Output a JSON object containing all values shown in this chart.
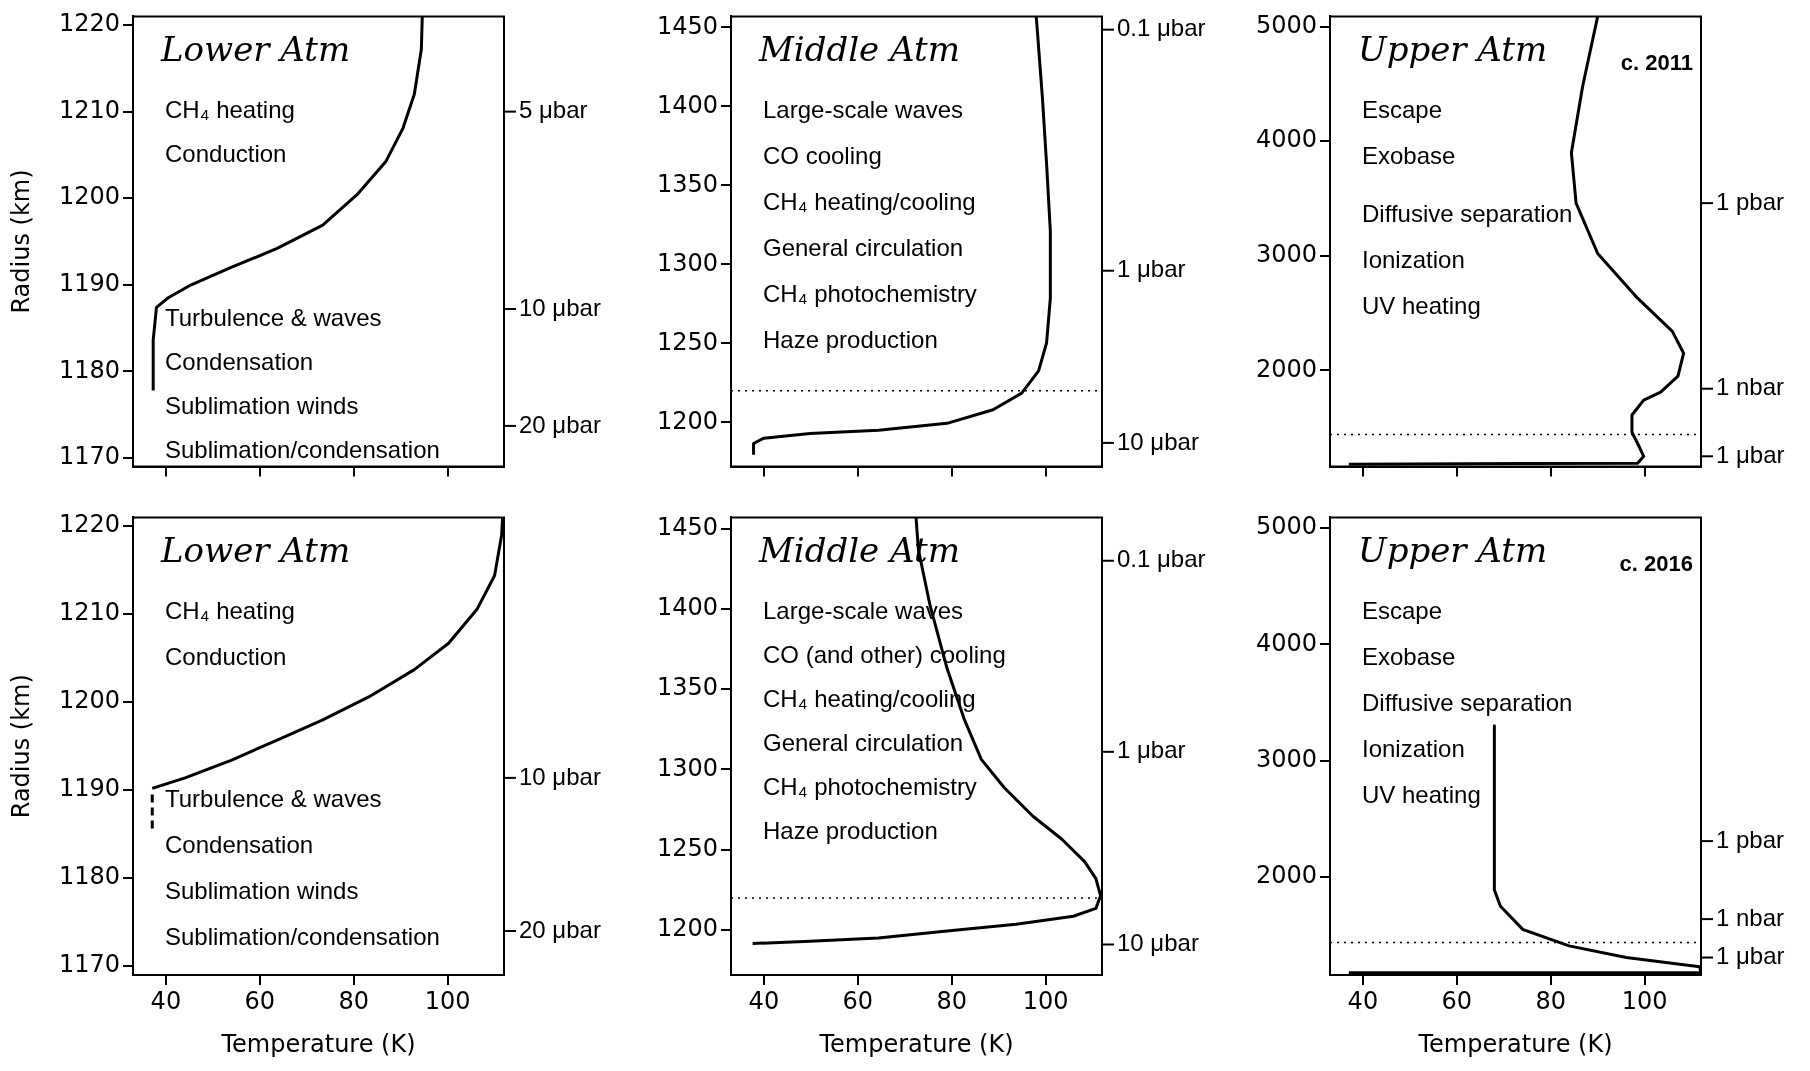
{
  "chart_data": [
    {
      "type": "line",
      "title": "Lower Atm",
      "ylabel": "Radius (km)",
      "tick_labels": "y",
      "xlim": [
        33,
        112
      ],
      "xticks": [
        40,
        60,
        80,
        100
      ],
      "ylim": [
        1169,
        1221
      ],
      "yticks": [
        1170,
        1180,
        1190,
        1200,
        1210,
        1220
      ],
      "series": [
        {
          "color": "#000000",
          "x": [
            37.3,
            37.3,
            38,
            40.5,
            45.4,
            53.9,
            63.7,
            73.4,
            80.7,
            86.8,
            90.5,
            92.9,
            94.4,
            94.6
          ],
          "values": [
            1177.8,
            1183.6,
            1187.4,
            1188.5,
            1190,
            1192,
            1194.2,
            1196.9,
            1200.4,
            1204.2,
            1208.1,
            1212,
            1217.2,
            1221
          ]
        }
      ],
      "ref_lines": [
        {
          "axis": "y",
          "value": 1210,
          "label": "5 μbar"
        },
        {
          "axis": "y",
          "value": 1187.2,
          "label": "10 μbar"
        },
        {
          "axis": "y",
          "value": 1173.7,
          "label": "20 μbar"
        }
      ],
      "annotations": [
        "CH₄ heating",
        "Conduction",
        "Turbulence & waves",
        "Condensation",
        "Sublimation winds",
        "Sublimation/condensation"
      ]
    },
    {
      "type": "line",
      "title": "Middle Atm",
      "tick_labels": "y",
      "xlim": [
        33,
        112
      ],
      "xticks": [
        40,
        60,
        80,
        100
      ],
      "ylim": [
        1172,
        1457
      ],
      "yticks": [
        1200,
        1250,
        1300,
        1350,
        1400,
        1450
      ],
      "series": [
        {
          "color": "#000000",
          "x": [
            37.8,
            37.8,
            40,
            49.8,
            64.4,
            79,
            88.8,
            94.9,
            98.5,
            100.2,
            101,
            101,
            100.2,
            99.3,
            98
          ],
          "values": [
            1179.5,
            1186.6,
            1190,
            1193,
            1195,
            1199.4,
            1208,
            1218.5,
            1232.6,
            1250.3,
            1278.7,
            1321,
            1363.6,
            1406,
            1457
          ]
        }
      ],
      "ref_lines": [
        {
          "axis": "y",
          "value": 1220,
          "line_style": "dotted"
        },
        {
          "axis": "y",
          "value": 1448.6,
          "label": "0.1 μbar"
        },
        {
          "axis": "y",
          "value": 1296,
          "label": "1 μbar"
        },
        {
          "axis": "y",
          "value": 1187,
          "label": "10 μbar"
        }
      ],
      "annotations": [
        "Large-scale waves",
        "CO cooling",
        "CH₄ heating/cooling",
        "General circulation",
        "CH₄ photochemistry",
        "Haze production"
      ]
    },
    {
      "type": "line",
      "title": "Upper Atm",
      "subtitle": "c. 2011",
      "tick_labels": "y",
      "xlim": [
        33,
        112
      ],
      "xticks": [
        40,
        60,
        80,
        100
      ],
      "ylim": [
        1160,
        5090
      ],
      "yticks": [
        2000,
        3000,
        4000,
        5000
      ],
      "series": [
        {
          "color": "#000000",
          "x": [
            90,
            86.8,
            84.4,
            85.4,
            90,
            98.5,
            105.9,
            108.3,
            107.1,
            103.4,
            99.8,
            97.3,
            97.3,
            99,
            99.8,
            98.5,
            37
          ],
          "values": [
            5090,
            4480,
            3900,
            3460,
            3020,
            2630,
            2340,
            2150,
            1950,
            1810,
            1740,
            1610,
            1460,
            1320,
            1250,
            1190,
            1180
          ]
        }
      ],
      "ref_lines": [
        {
          "axis": "y",
          "value": 1440,
          "line_style": "dotted"
        },
        {
          "axis": "y",
          "value": 3460,
          "label": "1 pbar"
        },
        {
          "axis": "y",
          "value": 1840,
          "label": "1 nbar"
        },
        {
          "axis": "y",
          "value": 1250,
          "label": "1 μbar"
        }
      ],
      "annotations": [
        "Escape",
        "Exobase",
        "Diffusive separation",
        "Ionization",
        "UV heating"
      ]
    },
    {
      "type": "line",
      "title": "Lower Atm",
      "xlabel": "Temperature (K)",
      "ylabel": "Radius (km)",
      "xlim": [
        33,
        112
      ],
      "xticks": [
        40,
        60,
        80,
        100
      ],
      "ylim": [
        1169,
        1221
      ],
      "yticks": [
        1170,
        1180,
        1190,
        1200,
        1210,
        1220
      ],
      "series": [
        {
          "color": "#000000",
          "x": [
            37.1,
            44.1,
            53.9,
            63.7,
            73.4,
            83.2,
            92.9,
            100.2,
            106.3,
            110,
            111.5,
            111.7
          ],
          "values": [
            1190.2,
            1191.4,
            1193.4,
            1195.7,
            1198,
            1200.6,
            1203.7,
            1206.7,
            1210.6,
            1214.4,
            1219,
            1221
          ]
        },
        {
          "color": "#000000",
          "line_style": "dashed",
          "x": [
            37.1,
            37.1
          ],
          "values": [
            1189.5,
            1185.6
          ]
        }
      ],
      "ref_lines": [
        {
          "axis": "y",
          "value": 1191.4,
          "label": "10 μbar"
        },
        {
          "axis": "y",
          "value": 1174,
          "label": "20 μbar"
        }
      ],
      "annotations": [
        "CH₄ heating",
        "Conduction",
        "Turbulence & waves",
        "Condensation",
        "Sublimation winds",
        "Sublimation/condensation"
      ]
    },
    {
      "type": "line",
      "title": "Middle Atm",
      "xlabel": "Temperature (K)",
      "xlim": [
        33,
        112
      ],
      "xticks": [
        40,
        60,
        80,
        100
      ],
      "ylim": [
        1172,
        1457
      ],
      "yticks": [
        1200,
        1250,
        1300,
        1350,
        1400,
        1450
      ],
      "series": [
        {
          "color": "#000000",
          "x": [
            37.6,
            49.8,
            64.4,
            79,
            93.7,
            105.9,
            110.7,
            111.7,
            110.7,
            108.3,
            103.4,
            97.3,
            91.2,
            86.3,
            82.7,
            79,
            75.4,
            72.9,
            72.4
          ],
          "values": [
            1191.6,
            1193,
            1195.1,
            1199.4,
            1203.6,
            1208.6,
            1213.5,
            1221.3,
            1232,
            1242.6,
            1256.7,
            1270.9,
            1288.6,
            1306.3,
            1331,
            1363,
            1402,
            1437,
            1457
          ]
        }
      ],
      "ref_lines": [
        {
          "axis": "y",
          "value": 1220,
          "line_style": "dotted"
        },
        {
          "axis": "y",
          "value": 1430,
          "label": "0.1 μbar"
        },
        {
          "axis": "y",
          "value": 1311,
          "label": "1 μbar"
        },
        {
          "axis": "y",
          "value": 1191,
          "label": "10 μbar"
        }
      ],
      "annotations": [
        "Large-scale waves",
        "CO (and other) cooling",
        "CH₄ heating/cooling",
        "General circulation",
        "CH₄ photochemistry",
        "Haze production"
      ]
    },
    {
      "type": "line",
      "title": "Upper Atm",
      "subtitle": "c. 2016",
      "xlabel": "Temperature (K)",
      "xlim": [
        33,
        112
      ],
      "xticks": [
        40,
        60,
        80,
        100
      ],
      "ylim": [
        1160,
        5090
      ],
      "yticks": [
        2000,
        3000,
        4000,
        5000
      ],
      "series": [
        {
          "color": "#000000",
          "x": [
            68,
            68,
            69.3,
            74.1,
            83.9,
            96.1,
            111.7,
            112,
            37
          ],
          "values": [
            3300,
            1890,
            1750,
            1550,
            1410,
            1310,
            1230,
            1180,
            1180
          ]
        }
      ],
      "ref_lines": [
        {
          "axis": "y",
          "value": 1440,
          "line_style": "dotted"
        },
        {
          "axis": "y",
          "value": 2310,
          "label": "1 pbar"
        },
        {
          "axis": "y",
          "value": 1640,
          "label": "1 nbar"
        },
        {
          "axis": "y",
          "value": 1310,
          "label": "1 μbar"
        }
      ],
      "annotations": [
        "Escape",
        "Exobase",
        "Diffusive separation",
        "Ionization",
        "UV heating"
      ]
    }
  ]
}
